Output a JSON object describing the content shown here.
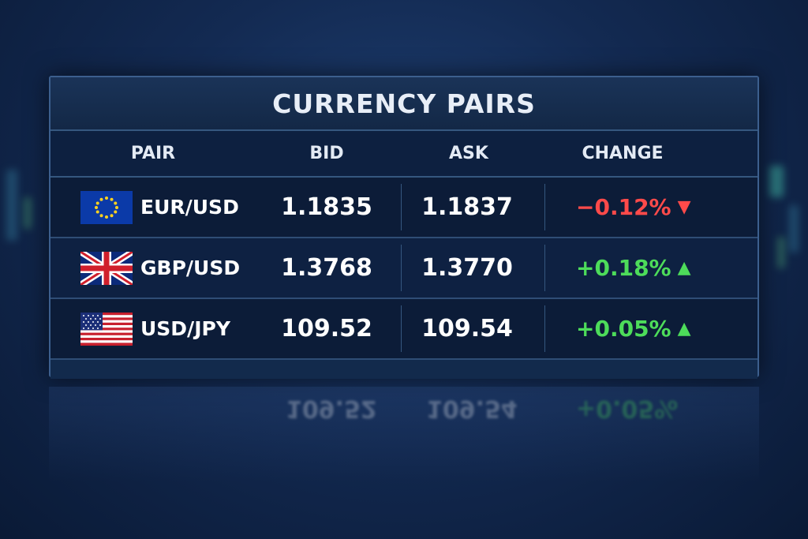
{
  "title": "CURRENCY PAIRS",
  "columns": [
    "PAIR",
    "BID",
    "ASK",
    "CHANGE"
  ],
  "colors": {
    "negative": "#ff4a4a",
    "positive": "#4ddc5a"
  },
  "rows": [
    {
      "pair": "EUR/USD",
      "flag": "eu-flag-icon",
      "bid": "1.1835",
      "ask": "1.1837",
      "change": "−0.12%",
      "direction": "down",
      "arrow": "▼"
    },
    {
      "pair": "GBP/USD",
      "flag": "uk-flag-icon",
      "bid": "1.3768",
      "ask": "1.3770",
      "change": "+0.18%",
      "direction": "up",
      "arrow": "▲"
    },
    {
      "pair": "USD/JPY",
      "flag": "us-flag-icon",
      "bid": "109.52",
      "ask": "109.54",
      "change": "+0.05%",
      "direction": "up",
      "arrow": "▲"
    }
  ]
}
